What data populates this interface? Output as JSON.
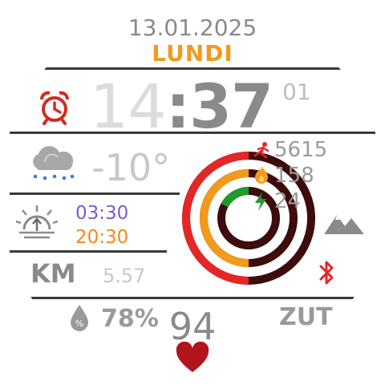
{
  "date": "13.01.2025",
  "day": "LUNDI",
  "time": {
    "hour": "14",
    "colon": ":",
    "minute": "37",
    "second": "01"
  },
  "weather": {
    "temperature": "-10°"
  },
  "sun": {
    "sunrise": "03:30",
    "sunset": "20:30"
  },
  "distance": {
    "label": "KM",
    "value": "5.57"
  },
  "humidity": {
    "value": "78%"
  },
  "heart_rate": {
    "value": "94"
  },
  "stats": {
    "steps": "5615",
    "calories": "158",
    "battery": "24"
  },
  "extra_label": "ZUT",
  "progress": {
    "steps": 0.5,
    "calories": 0.5,
    "battery": 0.24
  },
  "colors": {
    "accent_orange": "#f29a1c",
    "ring_red": "#e32626",
    "ring_dark": "#3d0c0c",
    "ring_orange": "#f29a1c",
    "ring_green": "#1e9a2e",
    "heart_red": "#b3141c"
  },
  "icons": {
    "alarm": "alarm-clock-icon",
    "weather": "snow-cloud-icon",
    "sunrise": "sunrise-icon",
    "steps": "steps-icon",
    "calories": "flame-icon",
    "battery": "lightning-icon",
    "mountain": "mountain-icon",
    "bluetooth": "bluetooth-icon",
    "humidity": "humidity-drop-icon",
    "heart": "heart-icon"
  }
}
